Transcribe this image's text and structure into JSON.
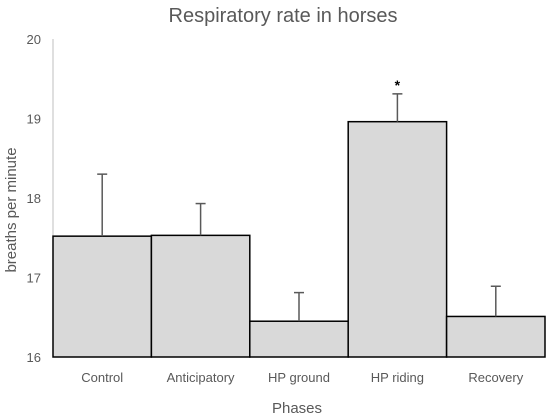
{
  "chart_data": {
    "type": "bar",
    "title": "Respiratory rate in horses",
    "xlabel": "Phases",
    "ylabel": "breaths per minute",
    "categories": [
      "Control",
      "Anticipatory",
      "HP ground",
      "HP riding",
      "Recovery"
    ],
    "values": [
      17.52,
      17.53,
      16.45,
      18.96,
      16.51
    ],
    "error_plus": [
      0.78,
      0.4,
      0.36,
      0.35,
      0.38
    ],
    "annotations": [
      "",
      "",
      "",
      "*",
      ""
    ],
    "ylim": [
      16,
      20
    ],
    "yticks": [
      16,
      17,
      18,
      19,
      20
    ],
    "grid": false,
    "legend": "none",
    "colors": {
      "bar_fill": "#d9d9d9",
      "bar_stroke": "#000000",
      "error_bar": "#595959",
      "axis_line": "#bfbfbf",
      "text": "#595959"
    }
  }
}
